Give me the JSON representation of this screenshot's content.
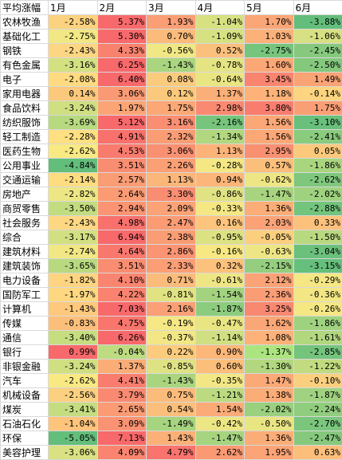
{
  "header": {
    "corner": "平均涨幅",
    "months": [
      "1月",
      "2月",
      "3月",
      "4月",
      "5月",
      "6月"
    ]
  },
  "rows": [
    {
      "name": "农林牧渔",
      "values": [
        "-2.58%",
        "5.37%",
        "1.93%",
        "-1.04%",
        "1.70%",
        "-3.88%"
      ],
      "colors": [
        "#fbd27f",
        "#f8696b",
        "#fa9e75",
        "#d8e182",
        "#fba676",
        "#63be7b"
      ]
    },
    {
      "name": "基础化工",
      "values": [
        "-2.75%",
        "5.30%",
        "0.70%",
        "-1.09%",
        "1.03%",
        "-1.06%"
      ],
      "colors": [
        "#f1e784",
        "#f8696b",
        "#fbbb7b",
        "#d6e182",
        "#fcb179",
        "#d7e082"
      ]
    },
    {
      "name": "钢铁",
      "values": [
        "-2.43%",
        "4.33%",
        "-0.56%",
        "0.52%",
        "-2.75%",
        "-2.45%"
      ],
      "colors": [
        "#fdd683",
        "#f9826f",
        "#f0e884",
        "#fcc07d",
        "#77c57d",
        "#86c97e"
      ]
    },
    {
      "name": "有色金属",
      "values": [
        "-3.16%",
        "6.25%",
        "-1.43%",
        "-0.78%",
        "1.60%",
        "-2.50%"
      ],
      "colors": [
        "#d4e181",
        "#f8696b",
        "#aad57f",
        "#e5e483",
        "#fba776",
        "#84c87d"
      ]
    },
    {
      "name": "电子",
      "values": [
        "-2.08%",
        "6.40%",
        "0.08%",
        "-0.64%",
        "3.45%",
        "1.49%"
      ],
      "colors": [
        "#fedb80",
        "#f8696b",
        "#fbcb7d",
        "#eae583",
        "#f98570",
        "#faa375"
      ]
    },
    {
      "name": "家用电器",
      "values": [
        "0.14%",
        "3.06%",
        "0.12%",
        "1.37%",
        "1.18%",
        "-0.14%"
      ],
      "colors": [
        "#fbc87c",
        "#fa9a74",
        "#fbc97c",
        "#fbaf78",
        "#fcb278",
        "#fdd47f"
      ]
    },
    {
      "name": "食品饮料",
      "values": [
        "-3.24%",
        "1.97%",
        "1.75%",
        "2.98%",
        "3.80%",
        "1.75%"
      ],
      "colors": [
        "#cfdf81",
        "#fba576",
        "#fba776",
        "#f98971",
        "#f97d6f",
        "#fa9f75"
      ]
    },
    {
      "name": "纺织服饰",
      "values": [
        "-3.69%",
        "5.12%",
        "3.16%",
        "-2.16%",
        "1.56%",
        "-3.10%"
      ],
      "colors": [
        "#b7d980",
        "#f8696b",
        "#f98e72",
        "#77c57d",
        "#fba776",
        "#69c07c"
      ]
    },
    {
      "name": "轻工制造",
      "values": [
        "-2.28%",
        "4.91%",
        "2.32%",
        "-1.34%",
        "1.56%",
        "-2.41%"
      ],
      "colors": [
        "#fee082",
        "#f8716c",
        "#fa9d75",
        "#b1d77f",
        "#fba776",
        "#8acb7e"
      ]
    },
    {
      "name": "医药生物",
      "values": [
        "-2.62%",
        "4.53%",
        "3.06%",
        "1.13%",
        "2.95%",
        "0.05%"
      ],
      "colors": [
        "#f8e983",
        "#f97b6e",
        "#fa9072",
        "#fcb379",
        "#f99071",
        "#fbc97c"
      ]
    },
    {
      "name": "公用事业",
      "values": [
        "-4.84%",
        "3.51%",
        "2.26%",
        "-0.28%",
        "0.57%",
        "-1.86%"
      ],
      "colors": [
        "#63be7b",
        "#f98d71",
        "#fb9f75",
        "#f4e784",
        "#fcbf7b",
        "#a9d57f"
      ]
    },
    {
      "name": "交通运输",
      "values": [
        "-2.14%",
        "2.57%",
        "1.13%",
        "0.94%",
        "-0.62%",
        "-2.62%"
      ],
      "colors": [
        "#fedd81",
        "#fa9c74",
        "#fbb679",
        "#fcb679",
        "#eee684",
        "#7fc77d"
      ]
    },
    {
      "name": "房地产",
      "values": [
        "-2.82%",
        "2.64%",
        "3.30%",
        "-0.86%",
        "-1.47%",
        "-2.02%"
      ],
      "colors": [
        "#ece684",
        "#fa9b74",
        "#f98d72",
        "#e0e283",
        "#a8d47f",
        "#9fd27f"
      ]
    },
    {
      "name": "商贸零售",
      "values": [
        "-3.50%",
        "2.94%",
        "2.09%",
        "-0.33%",
        "1.36%",
        "-2.88%"
      ],
      "colors": [
        "#c2dc80",
        "#fa9473",
        "#fba276",
        "#f4e784",
        "#fbad77",
        "#73c47d"
      ]
    },
    {
      "name": "社会服务",
      "values": [
        "-2.43%",
        "4.98%",
        "2.47%",
        "0.16%",
        "2.03%",
        "0.33%"
      ],
      "colors": [
        "#fdd782",
        "#f8716c",
        "#fa9b74",
        "#fcc47c",
        "#fba376",
        "#fcc17c"
      ]
    },
    {
      "name": "综合",
      "values": [
        "-3.17%",
        "6.94%",
        "2.38%",
        "-0.95%",
        "-0.05%",
        "-1.50%"
      ],
      "colors": [
        "#d3e081",
        "#f8696b",
        "#fa9c74",
        "#dce182",
        "#fbcf7e",
        "#b9d980"
      ]
    },
    {
      "name": "建筑材料",
      "values": [
        "-2.74%",
        "4.64%",
        "2.86%",
        "-0.16%",
        "-0.63%",
        "-3.04%"
      ],
      "colors": [
        "#f1e784",
        "#f9786e",
        "#fa9473",
        "#f7e883",
        "#eee684",
        "#6bc17c"
      ]
    },
    {
      "name": "建筑装饰",
      "values": [
        "-3.65%",
        "3.51%",
        "2.33%",
        "0.32%",
        "-2.15%",
        "-3.15%"
      ],
      "colors": [
        "#b9d980",
        "#f98d71",
        "#fb9e75",
        "#fcc17c",
        "#94ce7e",
        "#66bf7c"
      ]
    },
    {
      "name": "电力设备",
      "values": [
        "-1.82%",
        "4.10%",
        "0.71%",
        "-0.61%",
        "2.12%",
        "-0.29%"
      ],
      "colors": [
        "#fed480",
        "#f98570",
        "#fbbb7b",
        "#eee684",
        "#fba276",
        "#f4e784"
      ]
    },
    {
      "name": "国防军工",
      "values": [
        "-1.97%",
        "4.22%",
        "-0.81%",
        "-1.54%",
        "2.36%",
        "-0.36%"
      ],
      "colors": [
        "#fed881",
        "#f9836f",
        "#e1e383",
        "#a3d37f",
        "#fa9d75",
        "#f2e784"
      ]
    },
    {
      "name": "计算机",
      "values": [
        "-1.43%",
        "7.03%",
        "2.16%",
        "-1.87%",
        "3.25%",
        "-0.26%"
      ],
      "colors": [
        "#fec97d",
        "#f8696b",
        "#fba076",
        "#8ccc7e",
        "#f98871",
        "#f5e784"
      ]
    },
    {
      "name": "传媒",
      "values": [
        "-0.83%",
        "4.75%",
        "-0.19%",
        "-0.47%",
        "1.62%",
        "-1.86%"
      ],
      "colors": [
        "#fcbf7b",
        "#f9766d",
        "#f6e884",
        "#e9e583",
        "#fba676",
        "#9fd27f"
      ]
    },
    {
      "name": "通信",
      "values": [
        "-3.40%",
        "6.26%",
        "-0.37%",
        "-1.14%",
        "1.08%",
        "-1.61%"
      ],
      "colors": [
        "#c6dd80",
        "#f8696b",
        "#f2e784",
        "#d0df81",
        "#fcb279",
        "#b1d77f"
      ]
    },
    {
      "name": "银行",
      "values": [
        "0.99%",
        "-0.04%",
        "0.22%",
        "0.90%",
        "-1.37%",
        "-2.85%"
      ],
      "colors": [
        "#f8696b",
        "#bddb81",
        "#fccb7d",
        "#fcb779",
        "#ace57f",
        "#74c47d"
      ]
    },
    {
      "name": "非银金融",
      "values": [
        "-3.24%",
        "1.37%",
        "-0.85%",
        "0.60%",
        "-1.30%",
        "-1.22%"
      ],
      "colors": [
        "#cfdf81",
        "#fbad77",
        "#dfe283",
        "#fcbe7b",
        "#b2d77f",
        "#c1db80"
      ]
    },
    {
      "name": "汽车",
      "values": [
        "-2.62%",
        "4.41%",
        "-1.43%",
        "-0.35%",
        "1.47%",
        "-0.10%"
      ],
      "colors": [
        "#f8e983",
        "#f97d6e",
        "#aad57f",
        "#f2e784",
        "#fbaa77",
        "#fad07f"
      ]
    },
    {
      "name": "机械设备",
      "values": [
        "-2.56%",
        "3.79%",
        "0.75%",
        "-1.21%",
        "1.38%",
        "-1.87%"
      ],
      "colors": [
        "#fbd080",
        "#f98a71",
        "#fbbb7a",
        "#bcda80",
        "#fbac77",
        "#a0d27f"
      ]
    },
    {
      "name": "煤炭",
      "values": [
        "-3.41%",
        "2.65%",
        "0.54%",
        "1.54%",
        "-2.02%",
        "-2.24%"
      ],
      "colors": [
        "#c5dd80",
        "#fa9b74",
        "#fbbf7b",
        "#fbab77",
        "#9ad07e",
        "#91cd7e"
      ]
    },
    {
      "name": "石油石化",
      "values": [
        "-1.04%",
        "3.09%",
        "-1.49%",
        "-0.42%",
        "-0.50%",
        "-2.70%"
      ],
      "colors": [
        "#fec47c",
        "#fa9373",
        "#a6d47f",
        "#ede684",
        "#eae583",
        "#7ac67d"
      ]
    },
    {
      "name": "环保",
      "values": [
        "-5.05%",
        "7.13%",
        "1.43%",
        "-1.47%",
        "1.36%",
        "-2.47%"
      ],
      "colors": [
        "#63be7b",
        "#f8696b",
        "#fbb077",
        "#a6d47f",
        "#fbad77",
        "#86c97e"
      ]
    },
    {
      "name": "美容护理",
      "values": [
        "-3.06%",
        "4.09%",
        "4.79%",
        "2.62%",
        "1.95%",
        "0.63%"
      ],
      "colors": [
        "#d9e182",
        "#f98570",
        "#f9746d",
        "#fa9a74",
        "#fba476",
        "#fcbe7b"
      ]
    }
  ]
}
